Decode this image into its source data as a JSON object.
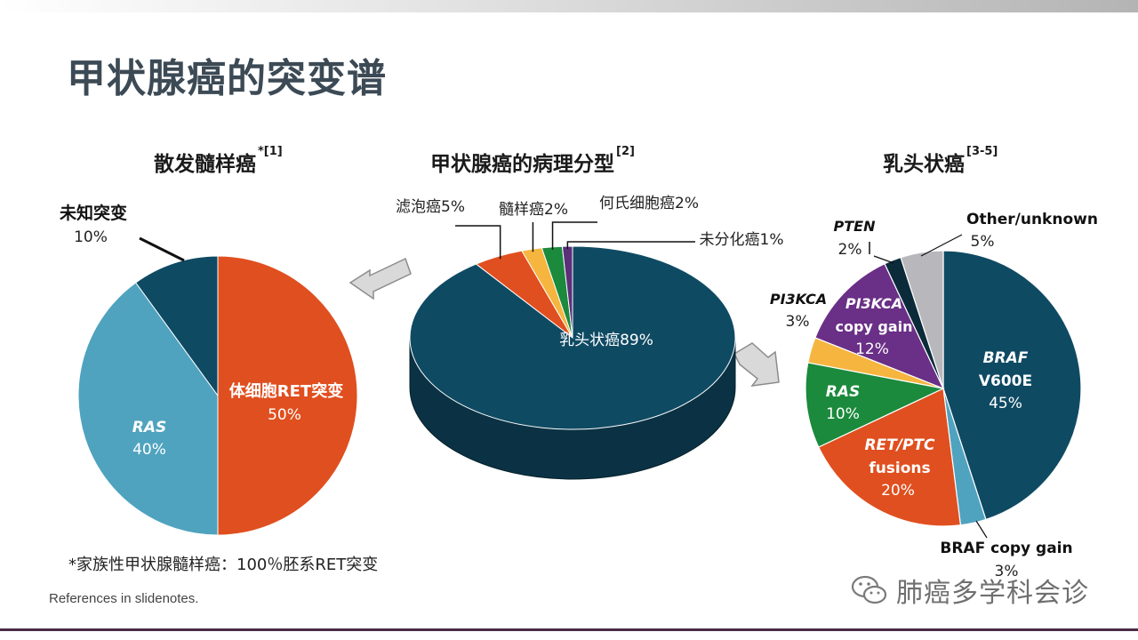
{
  "page": {
    "title": "甲状腺癌的突变谱",
    "footnote": "*家族性甲状腺髓样癌：100％胚系RET突变",
    "references": "References in slidenotes.",
    "watermark": "肺癌多学科会诊"
  },
  "panel_titles": [
    {
      "text": "散发髓样癌",
      "sup": "*[1]"
    },
    {
      "text": "甲状腺癌的病理分型",
      "sup": "[2]"
    },
    {
      "text": "乳头状癌",
      "sup": "[3-5]"
    }
  ],
  "chart_data": [
    {
      "type": "pie",
      "title": "散发髓样癌",
      "slices": [
        {
          "label": "体细胞RET突变",
          "pct_label": "50%",
          "value": 50,
          "color": "#e04f1f",
          "label_style": "inside-bold"
        },
        {
          "label": "RAS",
          "pct_label": "40%",
          "value": 40,
          "color": "#4fa3bf",
          "label_style": "inside-italic"
        },
        {
          "label": "未知突变",
          "pct_label": "10%",
          "value": 10,
          "color": "#0f4a63",
          "label_style": "outside"
        }
      ]
    },
    {
      "type": "pie",
      "title": "甲状腺癌的病理分型",
      "slices": [
        {
          "label": "乳头状癌",
          "pct_label": "89%",
          "value": 89,
          "color": "#0f4a63",
          "label_style": "inside"
        },
        {
          "label": "滤泡癌",
          "pct_label": "5%",
          "value": 5,
          "color": "#e04f1f",
          "label_style": "outside"
        },
        {
          "label": "髓样癌",
          "pct_label": "2%",
          "value": 2,
          "color": "#f5b53f",
          "label_style": "outside"
        },
        {
          "label": "何氏细胞癌",
          "pct_label": "2%",
          "value": 2,
          "color": "#1b8a3c",
          "label_style": "outside"
        },
        {
          "label": "未分化癌",
          "pct_label": "1%",
          "value": 1,
          "color": "#5b2f7a",
          "label_style": "outside"
        }
      ]
    },
    {
      "type": "pie",
      "title": "乳头状癌",
      "slices": [
        {
          "label": "BRAF V600E",
          "pct_label": "45%",
          "value": 45,
          "color": "#0f4a63",
          "label_style": "inside"
        },
        {
          "label": "BRAF copy gain",
          "pct_label": "3%",
          "value": 3,
          "color": "#4fa3bf",
          "label_style": "outside"
        },
        {
          "label": "RET/PTC fusions",
          "pct_label": "20%",
          "value": 20,
          "color": "#e04f1f",
          "label_style": "inside"
        },
        {
          "label": "RAS",
          "pct_label": "10%",
          "value": 10,
          "color": "#1b8a3c",
          "label_style": "inside"
        },
        {
          "label": "PI3KCA",
          "pct_label": "3%",
          "value": 3,
          "color": "#f5b53f",
          "label_style": "outside"
        },
        {
          "label": "PI3KCA copy gain",
          "pct_label": "12%",
          "value": 12,
          "color": "#6a2f86",
          "label_style": "inside"
        },
        {
          "label": "PTEN",
          "pct_label": "2%",
          "value": 2,
          "color": "#0b2b3a",
          "label_style": "outside"
        },
        {
          "label": "Other/unknown",
          "pct_label": "5%",
          "value": 5,
          "color": "#b8b8bc",
          "label_style": "outside"
        }
      ]
    }
  ]
}
